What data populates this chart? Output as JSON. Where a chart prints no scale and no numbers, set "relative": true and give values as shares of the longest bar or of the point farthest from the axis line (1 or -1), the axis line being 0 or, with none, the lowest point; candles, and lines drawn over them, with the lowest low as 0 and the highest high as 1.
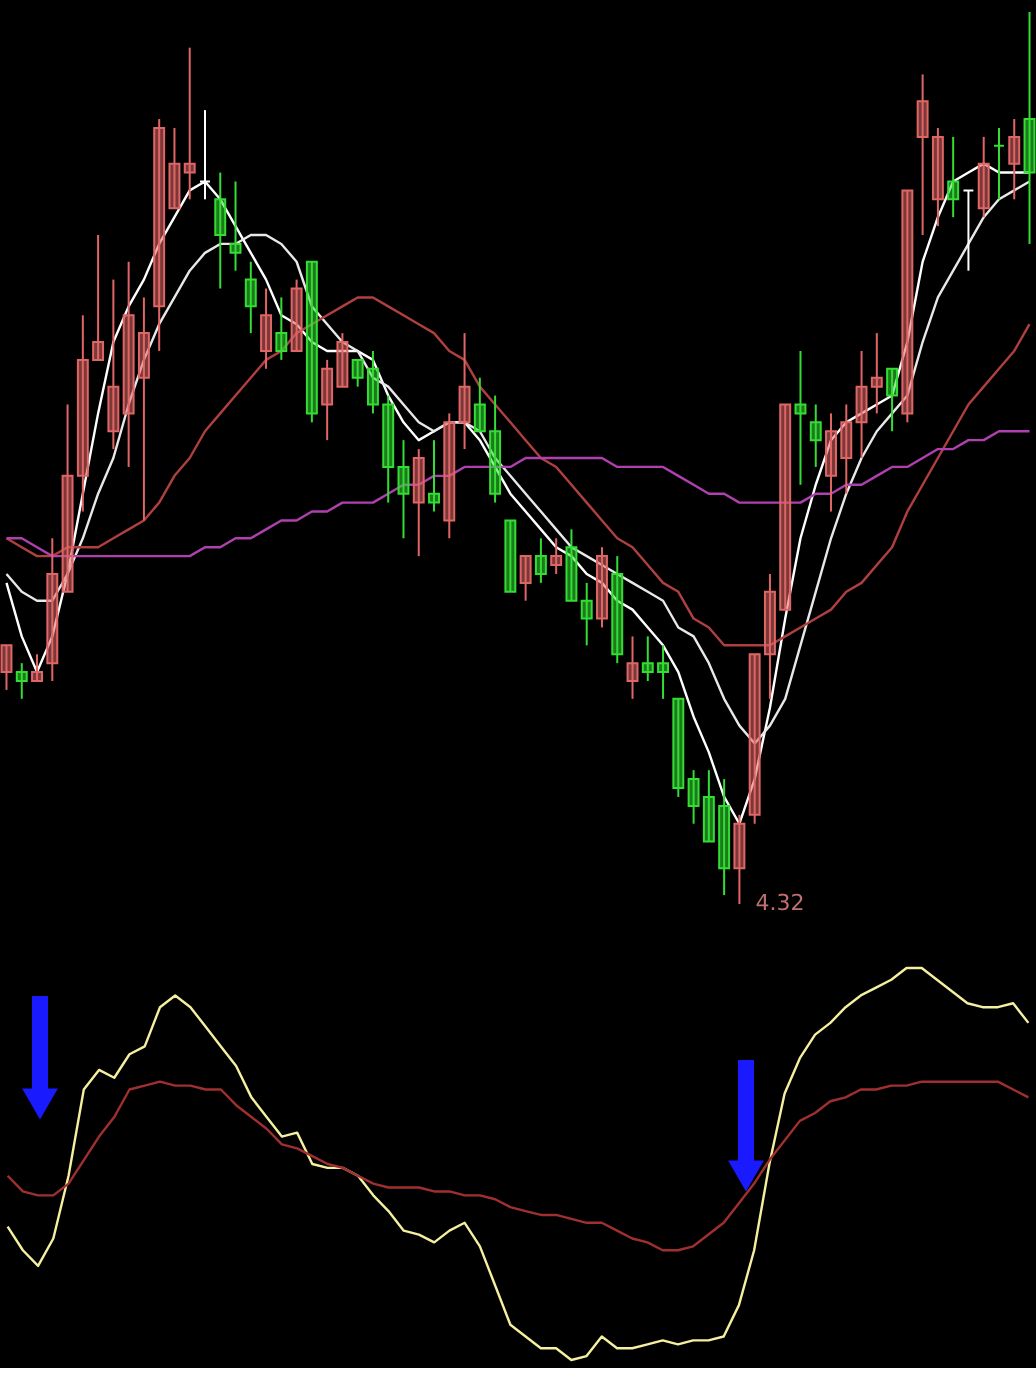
{
  "chart_data": [
    {
      "type": "candlestick",
      "relative": true,
      "tick_labels": false,
      "categories": [
        null,
        null,
        null,
        null,
        null,
        null,
        null,
        null,
        null,
        null,
        null,
        null,
        null,
        null,
        null,
        null,
        null,
        null,
        null,
        null,
        null,
        null,
        null,
        null,
        null,
        null,
        null,
        null,
        null,
        null,
        null,
        null,
        null,
        null,
        null,
        null,
        null,
        null,
        null,
        null,
        null,
        null,
        null,
        null,
        null,
        null,
        null,
        null,
        null,
        null,
        null,
        null,
        null,
        null,
        null,
        null,
        null,
        null,
        null,
        null,
        null,
        null,
        null,
        null,
        null,
        null,
        null,
        null
      ],
      "ohlc": [
        [
          0.26,
          0.29,
          0.24,
          0.29
        ],
        [
          0.26,
          0.27,
          0.23,
          0.25
        ],
        [
          0.25,
          0.28,
          0.25,
          0.26
        ],
        [
          0.27,
          0.41,
          0.25,
          0.37
        ],
        [
          0.35,
          0.56,
          0.35,
          0.48
        ],
        [
          0.48,
          0.66,
          0.44,
          0.61
        ],
        [
          0.61,
          0.75,
          0.61,
          0.63
        ],
        [
          0.53,
          0.7,
          0.51,
          0.58
        ],
        [
          0.55,
          0.72,
          0.49,
          0.66
        ],
        [
          0.59,
          0.68,
          0.43,
          0.64
        ],
        [
          0.67,
          0.88,
          0.62,
          0.87
        ],
        [
          0.78,
          0.87,
          0.78,
          0.83
        ],
        [
          0.82,
          0.96,
          0.79,
          0.83
        ],
        [
          0.81,
          0.89,
          0.79,
          0.81
        ],
        [
          0.79,
          0.82,
          0.69,
          0.75
        ],
        [
          0.74,
          0.81,
          0.71,
          0.73
        ],
        [
          0.7,
          0.72,
          0.64,
          0.67
        ],
        [
          0.62,
          0.69,
          0.6,
          0.66
        ],
        [
          0.64,
          0.68,
          0.61,
          0.62
        ],
        [
          0.62,
          0.7,
          0.62,
          0.69
        ],
        [
          0.72,
          0.72,
          0.54,
          0.55
        ],
        [
          0.56,
          0.61,
          0.52,
          0.6
        ],
        [
          0.58,
          0.64,
          0.58,
          0.63
        ],
        [
          0.61,
          0.61,
          0.58,
          0.59
        ],
        [
          0.6,
          0.62,
          0.55,
          0.56
        ],
        [
          0.56,
          0.57,
          0.45,
          0.49
        ],
        [
          0.49,
          0.52,
          0.41,
          0.46
        ],
        [
          0.45,
          0.51,
          0.39,
          0.5
        ],
        [
          0.46,
          0.52,
          0.44,
          0.45
        ],
        [
          0.43,
          0.55,
          0.41,
          0.54
        ],
        [
          0.54,
          0.64,
          0.51,
          0.58
        ],
        [
          0.56,
          0.59,
          0.53,
          0.53
        ],
        [
          0.53,
          0.57,
          0.45,
          0.46
        ],
        [
          0.43,
          0.43,
          0.35,
          0.35
        ],
        [
          0.36,
          0.39,
          0.34,
          0.39
        ],
        [
          0.39,
          0.41,
          0.36,
          0.37
        ],
        [
          0.38,
          0.41,
          0.37,
          0.39
        ],
        [
          0.4,
          0.42,
          0.34,
          0.34
        ],
        [
          0.34,
          0.36,
          0.29,
          0.32
        ],
        [
          0.32,
          0.4,
          0.31,
          0.39
        ],
        [
          0.37,
          0.39,
          0.27,
          0.28
        ],
        [
          0.25,
          0.3,
          0.23,
          0.27
        ],
        [
          0.27,
          0.3,
          0.25,
          0.26
        ],
        [
          0.27,
          0.29,
          0.23,
          0.26
        ],
        [
          0.23,
          0.23,
          0.12,
          0.13
        ],
        [
          0.14,
          0.15,
          0.09,
          0.11
        ],
        [
          0.12,
          0.15,
          0.07,
          0.07
        ],
        [
          0.11,
          0.14,
          0.01,
          0.04
        ],
        [
          0.04,
          0.1,
          0.0,
          0.09
        ],
        [
          0.1,
          0.28,
          0.09,
          0.28
        ],
        [
          0.28,
          0.37,
          0.23,
          0.35
        ],
        [
          0.33,
          0.56,
          0.33,
          0.56
        ],
        [
          0.56,
          0.62,
          0.47,
          0.55
        ],
        [
          0.54,
          0.56,
          0.49,
          0.52
        ],
        [
          0.48,
          0.55,
          0.44,
          0.53
        ],
        [
          0.5,
          0.56,
          0.46,
          0.54
        ],
        [
          0.54,
          0.62,
          0.5,
          0.58
        ],
        [
          0.58,
          0.64,
          0.55,
          0.59
        ],
        [
          0.6,
          0.6,
          0.53,
          0.57
        ],
        [
          0.55,
          0.8,
          0.54,
          0.8
        ],
        [
          0.86,
          0.93,
          0.75,
          0.9
        ],
        [
          0.79,
          0.87,
          0.76,
          0.86
        ],
        [
          0.81,
          0.86,
          0.77,
          0.79
        ],
        [
          0.8,
          0.8,
          0.71,
          0.8
        ],
        [
          0.78,
          0.86,
          0.77,
          0.83
        ],
        [
          0.85,
          0.87,
          0.79,
          0.85
        ],
        [
          0.83,
          0.88,
          0.79,
          0.86
        ],
        [
          0.88,
          1.0,
          0.74,
          0.82
        ]
      ],
      "colors": [
        "#e06666",
        "#33dd33",
        "#e06666",
        "#e06666",
        "#e06666",
        "#e06666",
        "#e06666",
        "#e06666",
        "#e06666",
        "#e06666",
        "#e06666",
        "#e06666",
        "#e06666",
        "#ffffff",
        "#33dd33",
        "#33dd33",
        "#33dd33",
        "#e06666",
        "#33dd33",
        "#e06666",
        "#33dd33",
        "#e06666",
        "#e06666",
        "#33dd33",
        "#33dd33",
        "#33dd33",
        "#33dd33",
        "#e06666",
        "#33dd33",
        "#e06666",
        "#e06666",
        "#33dd33",
        "#33dd33",
        "#33dd33",
        "#e06666",
        "#33dd33",
        "#e06666",
        "#33dd33",
        "#33dd33",
        "#e06666",
        "#33dd33",
        "#e06666",
        "#33dd33",
        "#33dd33",
        "#33dd33",
        "#33dd33",
        "#33dd33",
        "#33dd33",
        "#e06666",
        "#e06666",
        "#e06666",
        "#e06666",
        "#33dd33",
        "#33dd33",
        "#e06666",
        "#e06666",
        "#e06666",
        "#e06666",
        "#33dd33",
        "#e06666",
        "#e06666",
        "#e06666",
        "#33dd33",
        "#ffffff",
        "#e06666",
        "#33dd33",
        "#e06666",
        "#33dd33"
      ],
      "series": [
        {
          "type": "line",
          "color": "#ffffff",
          "values": [
            0.36,
            0.3,
            0.26,
            0.3,
            0.37,
            0.46,
            0.55,
            0.63,
            0.67,
            0.7,
            0.74,
            0.77,
            0.8,
            0.81,
            0.79,
            0.76,
            0.73,
            0.7,
            0.66,
            0.65,
            0.63,
            0.62,
            0.62,
            0.62,
            0.61,
            0.57,
            0.54,
            0.52,
            0.53,
            0.54,
            0.54,
            0.52,
            0.49,
            0.46,
            0.44,
            0.42,
            0.4,
            0.39,
            0.37,
            0.36,
            0.34,
            0.33,
            0.31,
            0.29,
            0.26,
            0.21,
            0.17,
            0.12,
            0.09,
            0.14,
            0.22,
            0.32,
            0.41,
            0.47,
            0.52,
            0.54,
            0.55,
            0.56,
            0.57,
            0.63,
            0.72,
            0.77,
            0.81,
            0.82,
            0.83,
            0.82,
            0.82,
            0.82
          ]
        },
        {
          "type": "line",
          "color": "#e8e8e8",
          "values": [
            0.37,
            0.35,
            0.34,
            0.34,
            0.37,
            0.41,
            0.46,
            0.5,
            0.56,
            0.61,
            0.65,
            0.68,
            0.71,
            0.73,
            0.74,
            0.74,
            0.75,
            0.75,
            0.74,
            0.72,
            0.67,
            0.65,
            0.63,
            0.62,
            0.59,
            0.58,
            0.56,
            0.54,
            0.53,
            0.54,
            0.54,
            0.53,
            0.5,
            0.48,
            0.46,
            0.44,
            0.42,
            0.4,
            0.39,
            0.38,
            0.37,
            0.36,
            0.35,
            0.34,
            0.31,
            0.3,
            0.27,
            0.23,
            0.2,
            0.18,
            0.2,
            0.23,
            0.29,
            0.35,
            0.41,
            0.46,
            0.5,
            0.53,
            0.55,
            0.57,
            0.63,
            0.68,
            0.71,
            0.74,
            0.77,
            0.79,
            0.8,
            0.81
          ]
        },
        {
          "type": "line",
          "color": "#b04040",
          "values": [
            0.41,
            0.4,
            0.39,
            0.39,
            0.4,
            0.4,
            0.4,
            0.41,
            0.42,
            0.43,
            0.45,
            0.48,
            0.5,
            0.53,
            0.55,
            0.57,
            0.59,
            0.61,
            0.62,
            0.64,
            0.65,
            0.66,
            0.67,
            0.68,
            0.68,
            0.67,
            0.66,
            0.65,
            0.64,
            0.62,
            0.61,
            0.58,
            0.56,
            0.54,
            0.52,
            0.5,
            0.49,
            0.47,
            0.45,
            0.43,
            0.41,
            0.4,
            0.38,
            0.36,
            0.35,
            0.32,
            0.31,
            0.29,
            0.29,
            0.29,
            0.29,
            0.3,
            0.31,
            0.32,
            0.33,
            0.35,
            0.36,
            0.38,
            0.4,
            0.44,
            0.47,
            0.5,
            0.53,
            0.56,
            0.58,
            0.6,
            0.62,
            0.65
          ]
        },
        {
          "type": "line",
          "color": "#b040b0",
          "values": [
            0.41,
            0.41,
            0.4,
            0.39,
            0.39,
            0.39,
            0.39,
            0.39,
            0.39,
            0.39,
            0.39,
            0.39,
            0.39,
            0.4,
            0.4,
            0.41,
            0.41,
            0.42,
            0.43,
            0.43,
            0.44,
            0.44,
            0.45,
            0.45,
            0.45,
            0.46,
            0.47,
            0.47,
            0.48,
            0.48,
            0.49,
            0.49,
            0.49,
            0.49,
            0.5,
            0.5,
            0.5,
            0.5,
            0.5,
            0.5,
            0.49,
            0.49,
            0.49,
            0.49,
            0.48,
            0.47,
            0.46,
            0.46,
            0.45,
            0.45,
            0.45,
            0.45,
            0.45,
            0.46,
            0.46,
            0.47,
            0.47,
            0.48,
            0.49,
            0.49,
            0.5,
            0.51,
            0.51,
            0.52,
            0.52,
            0.53,
            0.53,
            0.53
          ]
        }
      ],
      "annotations": [
        "4.32"
      ]
    },
    {
      "type": "line",
      "relative": true,
      "tick_labels": false,
      "categories": [
        null,
        null,
        null,
        null,
        null,
        null,
        null,
        null,
        null,
        null,
        null,
        null,
        null,
        null,
        null,
        null,
        null,
        null,
        null,
        null,
        null,
        null,
        null,
        null,
        null,
        null,
        null,
        null,
        null,
        null,
        null,
        null,
        null,
        null,
        null,
        null,
        null,
        null,
        null,
        null,
        null,
        null,
        null,
        null,
        null,
        null,
        null,
        null,
        null,
        null,
        null,
        null,
        null,
        null,
        null,
        null,
        null,
        null,
        null,
        null,
        null,
        null,
        null,
        null,
        null,
        null,
        null,
        null
      ],
      "series": [
        {
          "color": "#f5f0a0",
          "values": [
            0.34,
            0.28,
            0.24,
            0.31,
            0.47,
            0.69,
            0.74,
            0.72,
            0.78,
            0.8,
            0.9,
            0.93,
            0.9,
            0.85,
            0.8,
            0.75,
            0.67,
            0.62,
            0.57,
            0.58,
            0.5,
            0.49,
            0.49,
            0.47,
            0.42,
            0.38,
            0.33,
            0.32,
            0.3,
            0.33,
            0.35,
            0.29,
            0.19,
            0.09,
            0.06,
            0.03,
            0.03,
            0.0,
            0.01,
            0.06,
            0.03,
            0.03,
            0.04,
            0.05,
            0.04,
            0.05,
            0.05,
            0.06,
            0.14,
            0.28,
            0.5,
            0.68,
            0.77,
            0.83,
            0.86,
            0.9,
            0.93,
            0.95,
            0.97,
            1.0,
            1.0,
            0.97,
            0.94,
            0.91,
            0.9,
            0.9,
            0.91,
            0.86
          ]
        },
        {
          "color": "#a03030",
          "values": [
            0.47,
            0.43,
            0.42,
            0.42,
            0.45,
            0.51,
            0.57,
            0.62,
            0.69,
            0.7,
            0.71,
            0.7,
            0.7,
            0.69,
            0.69,
            0.65,
            0.62,
            0.59,
            0.55,
            0.54,
            0.52,
            0.5,
            0.49,
            0.47,
            0.45,
            0.44,
            0.44,
            0.44,
            0.43,
            0.43,
            0.42,
            0.42,
            0.41,
            0.39,
            0.38,
            0.37,
            0.37,
            0.36,
            0.35,
            0.35,
            0.33,
            0.31,
            0.3,
            0.28,
            0.28,
            0.29,
            0.32,
            0.35,
            0.4,
            0.45,
            0.51,
            0.56,
            0.61,
            0.63,
            0.66,
            0.67,
            0.69,
            0.69,
            0.7,
            0.7,
            0.71,
            0.71,
            0.71,
            0.71,
            0.71,
            0.71,
            0.69,
            0.67
          ]
        }
      ]
    }
  ]
}
